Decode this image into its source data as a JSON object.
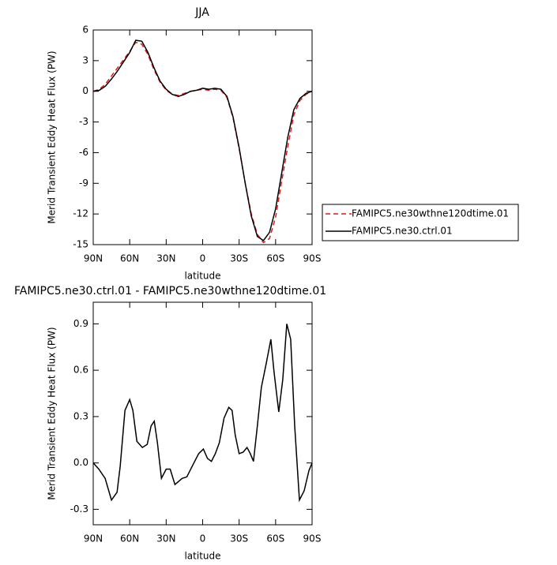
{
  "chart_data": [
    {
      "type": "line",
      "title": "JJA",
      "xlabel": "latitude",
      "ylabel": "Merid Transient Eddy Heat Flux (PW)",
      "x": [
        90,
        85,
        80,
        75,
        70,
        65,
        60,
        55,
        50,
        45,
        40,
        35,
        30,
        25,
        20,
        15,
        10,
        5,
        0,
        -5,
        -10,
        -15,
        -20,
        -25,
        -30,
        -35,
        -40,
        -45,
        -50,
        -55,
        -60,
        -65,
        -70,
        -75,
        -80,
        -85,
        -90
      ],
      "series": [
        {
          "name": "FAMIPC5.ne30wthne120dtime.01",
          "color": "#e01818",
          "dashed": true,
          "values": [
            0,
            0.2,
            0.7,
            1.5,
            2.3,
            3.1,
            3.9,
            4.8,
            4.6,
            3.6,
            2.1,
            0.9,
            0.1,
            -0.3,
            -0.4,
            -0.2,
            0.0,
            0.1,
            0.2,
            0.1,
            0.2,
            0.1,
            -0.6,
            -2.6,
            -5.6,
            -9,
            -12,
            -14,
            -14.8,
            -14.4,
            -12.3,
            -8.8,
            -5.4,
            -2.3,
            -0.9,
            -0.3,
            0
          ]
        },
        {
          "name": "FAMIPC5.ne30.ctrl.01",
          "color": "#000000",
          "dashed": false,
          "values": [
            0,
            0.1,
            0.5,
            1.2,
            2.0,
            2.9,
            3.8,
            5.0,
            4.9,
            3.8,
            2.3,
            1.0,
            0.2,
            -0.3,
            -0.5,
            -0.3,
            0.0,
            0.1,
            0.3,
            0.2,
            0.3,
            0.2,
            -0.5,
            -2.5,
            -5.5,
            -9,
            -12.2,
            -14.2,
            -14.6,
            -13.8,
            -11.5,
            -8,
            -4.5,
            -1.8,
            -0.7,
            -0.2,
            0
          ]
        }
      ],
      "xlim": [
        90,
        -90
      ],
      "xticks": [
        {
          "value": 90,
          "label": "90N"
        },
        {
          "value": 60,
          "label": "60N"
        },
        {
          "value": 30,
          "label": "30N"
        },
        0,
        {
          "value": -30,
          "label": "30S"
        },
        {
          "value": -60,
          "label": "60S"
        },
        {
          "value": -90,
          "label": "90S"
        }
      ],
      "ylim": [
        -15,
        6
      ],
      "yticks": [
        6,
        3,
        0,
        -3,
        -6,
        -9,
        -12,
        -15
      ],
      "legend": "right"
    },
    {
      "type": "line",
      "title": "FAMIPC5.ne30.ctrl.01 - FAMIPC5.ne30wthne120dtime.01",
      "xlabel": "latitude",
      "ylabel": "Merid Transient Eddy Heat Flux (PW)",
      "x": [
        90,
        85.4,
        80.2,
        75,
        70.4,
        67.8,
        63.9,
        60,
        57.4,
        54.1,
        49.6,
        45.6,
        42.4,
        39.8,
        37.2,
        33.9,
        30,
        26.7,
        22.8,
        16.9,
        13,
        8.5,
        3.3,
        -0.6,
        -3.9,
        -7.2,
        -10.4,
        -13.7,
        -17.6,
        -21.5,
        -24.2,
        -26.8,
        -30,
        -33.3,
        -36.5,
        -39.2,
        -41.8,
        -45,
        -48.3,
        -52.2,
        -56.1,
        -58.7,
        -62.6,
        -65.9,
        -69.2,
        -72.4,
        -75.7,
        -79.6,
        -83.5,
        -87.4,
        -90
      ],
      "values": [
        0,
        -0.04,
        -0.1,
        -0.24,
        -0.19,
        -0.02,
        0.34,
        0.41,
        0.34,
        0.14,
        0.1,
        0.12,
        0.24,
        0.27,
        0.13,
        -0.1,
        -0.04,
        -0.04,
        -0.14,
        -0.1,
        -0.09,
        -0.02,
        0.06,
        0.09,
        0.03,
        0.01,
        0.06,
        0.13,
        0.29,
        0.36,
        0.34,
        0.18,
        0.06,
        0.07,
        0.1,
        0.06,
        0.01,
        0.24,
        0.49,
        0.64,
        0.8,
        0.59,
        0.33,
        0.54,
        0.9,
        0.8,
        0.24,
        -0.24,
        -0.18,
        -0.05,
        0
      ],
      "color": "#000000",
      "xlim": [
        90,
        -90
      ],
      "xticks": [
        {
          "value": 90,
          "label": "90N"
        },
        {
          "value": 60,
          "label": "60N"
        },
        {
          "value": 30,
          "label": "30N"
        },
        0,
        {
          "value": -30,
          "label": "30S"
        },
        {
          "value": -60,
          "label": "60S"
        },
        {
          "value": -90,
          "label": "90S"
        }
      ],
      "ylim": [
        -0.4,
        1.04
      ],
      "yticks": [
        0.9,
        0.6,
        0.3,
        {
          "value": 0,
          "label": "0.0"
        },
        -0.3
      ]
    }
  ]
}
